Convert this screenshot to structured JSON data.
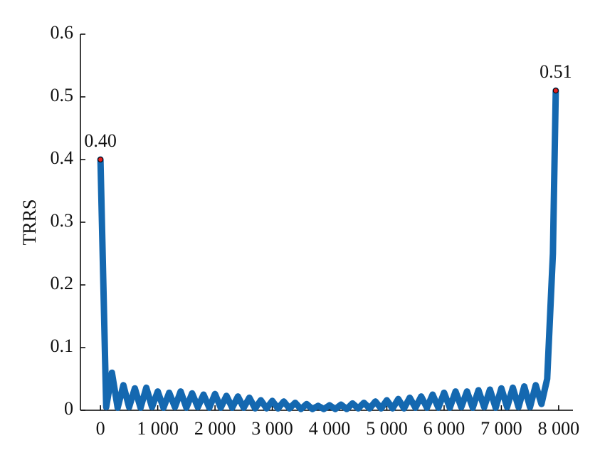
{
  "chart_data": {
    "type": "line",
    "ylabel": "TRRS",
    "xlim": [
      -350,
      8250
    ],
    "xticks": [
      0,
      {
        "value": 1000,
        "label": "1 000"
      },
      {
        "value": 2000,
        "label": "2 000"
      },
      {
        "value": 3000,
        "label": "3 000"
      },
      {
        "value": 4000,
        "label": "4 000"
      },
      {
        "value": 5000,
        "label": "5 000"
      },
      {
        "value": 6000,
        "label": "6 000"
      },
      {
        "value": 7000,
        "label": "7 000"
      },
      {
        "value": 8000,
        "label": "8 000"
      }
    ],
    "ylim": [
      0,
      0.6
    ],
    "yticks": [
      0,
      0.1,
      0.2,
      0.3,
      0.4,
      0.5,
      0.6
    ],
    "x": [
      0,
      100,
      200,
      300,
      400,
      500,
      600,
      700,
      800,
      900,
      1000,
      1100,
      1200,
      1300,
      1400,
      1500,
      1600,
      1700,
      1800,
      1900,
      2000,
      2100,
      2200,
      2300,
      2400,
      2500,
      2600,
      2700,
      2800,
      2900,
      3000,
      3100,
      3200,
      3300,
      3400,
      3500,
      3600,
      3700,
      3800,
      3900,
      4000,
      4100,
      4200,
      4300,
      4400,
      4500,
      4600,
      4700,
      4800,
      4900,
      5000,
      5100,
      5200,
      5300,
      5400,
      5500,
      5600,
      5700,
      5800,
      5900,
      6000,
      6100,
      6200,
      6300,
      6400,
      6500,
      6600,
      6700,
      6800,
      6900,
      7000,
      7100,
      7200,
      7300,
      7400,
      7500,
      7600,
      7700,
      7800,
      7900,
      7950
    ],
    "series": [
      {
        "color": "#1468b0",
        "values": [
          0.4,
          0.005,
          0.06,
          0.004,
          0.04,
          0.005,
          0.035,
          0.004,
          0.036,
          0.005,
          0.03,
          0.004,
          0.028,
          0.005,
          0.03,
          0.004,
          0.027,
          0.005,
          0.025,
          0.004,
          0.026,
          0.004,
          0.023,
          0.004,
          0.022,
          0.004,
          0.02,
          0.003,
          0.016,
          0.003,
          0.015,
          0.003,
          0.014,
          0.003,
          0.012,
          0.002,
          0.01,
          0.002,
          0.007,
          0.002,
          0.008,
          0.002,
          0.009,
          0.002,
          0.011,
          0.003,
          0.012,
          0.003,
          0.014,
          0.003,
          0.016,
          0.003,
          0.018,
          0.003,
          0.02,
          0.004,
          0.022,
          0.004,
          0.025,
          0.004,
          0.028,
          0.004,
          0.03,
          0.005,
          0.03,
          0.004,
          0.032,
          0.005,
          0.033,
          0.004,
          0.035,
          0.005,
          0.036,
          0.005,
          0.038,
          0.005,
          0.04,
          0.01,
          0.05,
          0.25,
          0.51
        ]
      }
    ],
    "markers": {
      "color": "#e02020",
      "x": [
        0,
        7950
      ],
      "values": [
        0.4,
        0.51
      ],
      "value_labels": [
        "0.40",
        "0.51"
      ]
    }
  }
}
